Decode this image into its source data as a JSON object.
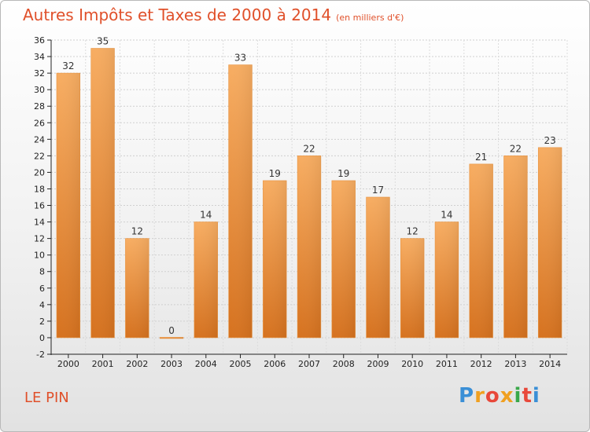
{
  "header": {
    "title": "Autres Impôts et Taxes de 2000 à 2014",
    "unit": "(en milliers d'€)"
  },
  "footer": {
    "place": "LE PIN",
    "logo_letters": [
      "P",
      "r",
      "o",
      "x",
      "i",
      "t",
      "i"
    ],
    "logo_colors": [
      "#3a8fd6",
      "#f0a020",
      "#e8483a",
      "#f0a020",
      "#3aa84a",
      "#e8483a",
      "#3a8fd6"
    ]
  },
  "colors": {
    "title": "#e0502a",
    "bar_light": "#f5a55a",
    "bar_dark": "#d9741f",
    "grid": "#cccccc",
    "axis": "#222222"
  },
  "chart_data": {
    "type": "bar",
    "title": "Autres Impôts et Taxes de 2000 à 2014",
    "subtitle": "(en milliers d'€)",
    "categories": [
      "2000",
      "2001",
      "2002",
      "2003",
      "2004",
      "2005",
      "2006",
      "2007",
      "2008",
      "2009",
      "2010",
      "2011",
      "2012",
      "2013",
      "2014"
    ],
    "values": [
      32,
      35,
      12,
      0,
      14,
      33,
      19,
      22,
      19,
      17,
      12,
      14,
      21,
      22,
      23
    ],
    "ylim": [
      -2,
      36
    ],
    "yticks": [
      -2,
      0,
      2,
      4,
      6,
      8,
      10,
      12,
      14,
      16,
      18,
      20,
      22,
      24,
      26,
      28,
      30,
      32,
      34,
      36
    ],
    "grid": true,
    "xlabel": "",
    "ylabel": ""
  }
}
